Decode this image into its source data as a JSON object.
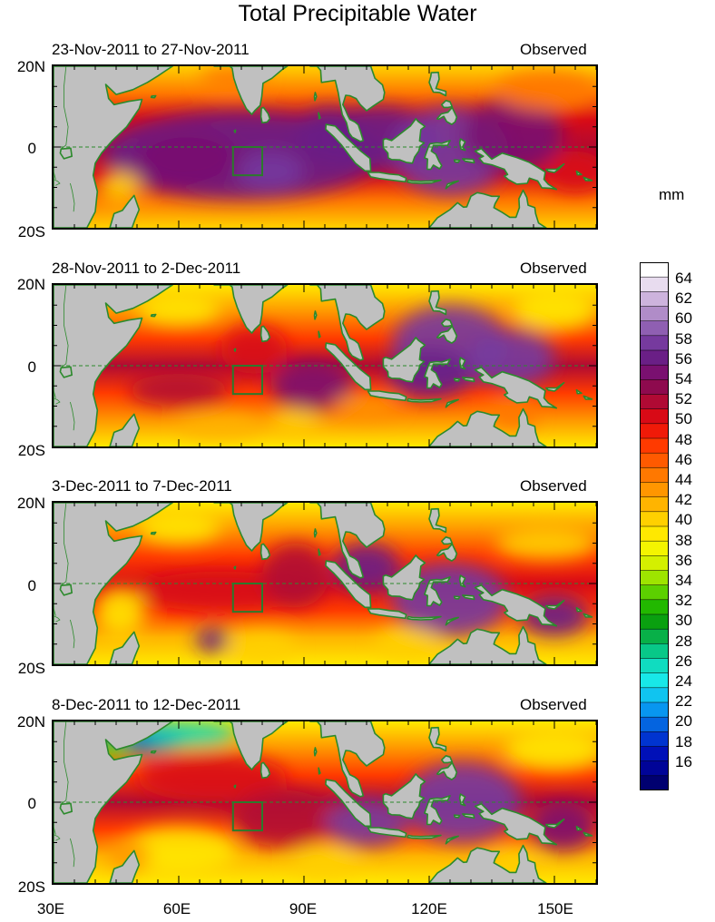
{
  "title": "Total Precipitable Water",
  "unit": "mm",
  "panels": [
    {
      "date_range": "23-Nov-2011 to 27-Nov-2011",
      "status": "Observed"
    },
    {
      "date_range": "28-Nov-2011 to 2-Dec-2011",
      "status": "Observed"
    },
    {
      "date_range": "3-Dec-2011 to 7-Dec-2011",
      "status": "Observed"
    },
    {
      "date_range": "8-Dec-2011 to 12-Dec-2011",
      "status": "Observed"
    }
  ],
  "lat_labels": [
    "20N",
    "0",
    "20S"
  ],
  "lon_labels": [
    "30E",
    "60E",
    "90E",
    "120E",
    "150E"
  ],
  "lon_range": [
    30,
    160
  ],
  "lat_range": [
    -20,
    20
  ],
  "colorbar": {
    "min": 15,
    "max": 66,
    "labels": [
      "64",
      "62",
      "60",
      "58",
      "56",
      "54",
      "52",
      "50",
      "48",
      "46",
      "44",
      "42",
      "40",
      "38",
      "36",
      "34",
      "32",
      "30",
      "28",
      "26",
      "24",
      "22",
      "20",
      "18",
      "16"
    ],
    "colors": [
      "#ffffff",
      "#e8dcef",
      "#cdb3dd",
      "#b08cc8",
      "#8f5fb2",
      "#763a9e",
      "#6a1f86",
      "#7a1070",
      "#8e0a4e",
      "#b00a34",
      "#d80a16",
      "#f01a08",
      "#ff3a00",
      "#ff5a00",
      "#ff7800",
      "#ff9600",
      "#ffb400",
      "#ffd000",
      "#ffe800",
      "#f4f400",
      "#d4f000",
      "#9ee400",
      "#5cd000",
      "#22b800",
      "#0aa010",
      "#08b048",
      "#08c888",
      "#10dcc0",
      "#18e8e8",
      "#10c4f0",
      "#0896f0",
      "#0464e0",
      "#0034d0",
      "#0010b8",
      "#000498",
      "#000070"
    ]
  },
  "region_box": {
    "lon": [
      73,
      80
    ],
    "lat": [
      -7,
      0
    ]
  },
  "colors": {
    "land": "#c0c0c0",
    "coast": "#2c8a2c",
    "box": "#2c7a2c",
    "equator": "#2c8a2c"
  }
}
